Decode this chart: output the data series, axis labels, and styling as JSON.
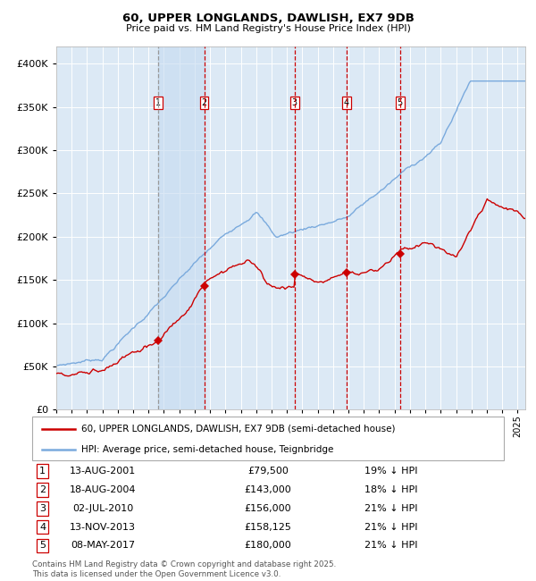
{
  "title_line1": "60, UPPER LONGLANDS, DAWLISH, EX7 9DB",
  "title_line2": "Price paid vs. HM Land Registry's House Price Index (HPI)",
  "bg_color": "#dce9f5",
  "red_line_color": "#cc0000",
  "blue_line_color": "#7aaadd",
  "grid_color": "#ffffff",
  "sale_marker_color": "#cc0000",
  "ylim": [
    0,
    420000
  ],
  "yticks": [
    0,
    50000,
    100000,
    150000,
    200000,
    250000,
    300000,
    350000,
    400000
  ],
  "footer_text": "Contains HM Land Registry data © Crown copyright and database right 2025.\nThis data is licensed under the Open Government Licence v3.0.",
  "legend_entries": [
    "60, UPPER LONGLANDS, DAWLISH, EX7 9DB (semi-detached house)",
    "HPI: Average price, semi-detached house, Teignbridge"
  ],
  "sale_events": [
    {
      "num": 1,
      "date_label": "13-AUG-2001",
      "price_label": "£79,500",
      "pct_label": "19% ↓ HPI",
      "year": 2001.62,
      "price": 79500
    },
    {
      "num": 2,
      "date_label": "18-AUG-2004",
      "price_label": "£143,000",
      "pct_label": "18% ↓ HPI",
      "year": 2004.62,
      "price": 143000
    },
    {
      "num": 3,
      "date_label": "02-JUL-2010",
      "price_label": "£156,000",
      "pct_label": "21% ↓ HPI",
      "year": 2010.5,
      "price": 156000
    },
    {
      "num": 4,
      "date_label": "13-NOV-2013",
      "price_label": "£158,125",
      "pct_label": "21% ↓ HPI",
      "year": 2013.87,
      "price": 158125
    },
    {
      "num": 5,
      "date_label": "08-MAY-2017",
      "price_label": "£180,000",
      "pct_label": "21% ↓ HPI",
      "year": 2017.35,
      "price": 180000
    }
  ],
  "xmin": 1995.0,
  "xmax": 2025.5
}
